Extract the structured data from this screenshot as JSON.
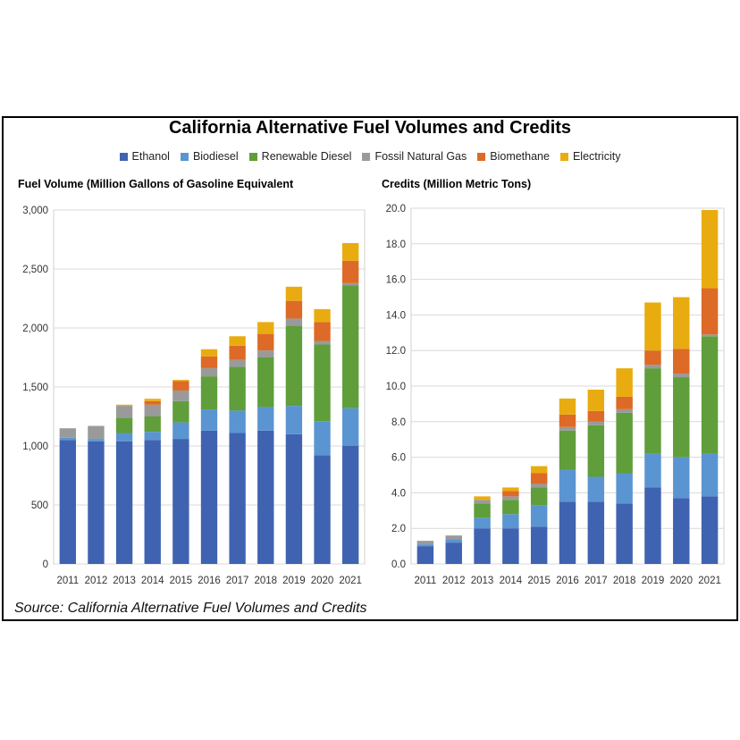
{
  "title": "California Alternative Fuel Volumes and Credits",
  "source": "Source: California Alternative Fuel Volumes and Credits",
  "legend": [
    {
      "name": "Ethanol",
      "color": "#3f63b0"
    },
    {
      "name": "Biodiesel",
      "color": "#5a95d2"
    },
    {
      "name": "Renewable Diesel",
      "color": "#5f9e3a"
    },
    {
      "name": "Fossil Natural Gas",
      "color": "#9a9a9a"
    },
    {
      "name": "Biomethane",
      "color": "#dd6a26"
    },
    {
      "name": "Electricity",
      "color": "#e9ac10"
    }
  ],
  "chart_data": [
    {
      "type": "bar",
      "stacked": true,
      "title": "Fuel Volume (Million Gallons of Gasoline Equivalent",
      "categories": [
        "2011",
        "2012",
        "2013",
        "2014",
        "2015",
        "2016",
        "2017",
        "2018",
        "2019",
        "2020",
        "2021"
      ],
      "yticks": [
        "0",
        "500",
        "1,000",
        "1,500",
        "2,000",
        "2,500",
        "3,000"
      ],
      "ylim": [
        0,
        3000
      ],
      "grid": true,
      "series": [
        {
          "name": "Ethanol",
          "values": [
            1050,
            1040,
            1040,
            1050,
            1060,
            1130,
            1110,
            1130,
            1100,
            920,
            1000
          ]
        },
        {
          "name": "Biodiesel",
          "values": [
            20,
            20,
            70,
            70,
            140,
            180,
            190,
            200,
            240,
            290,
            320
          ]
        },
        {
          "name": "Renewable Diesel",
          "values": [
            0,
            0,
            130,
            130,
            180,
            280,
            370,
            420,
            680,
            650,
            1040
          ]
        },
        {
          "name": "Fossil Natural Gas",
          "values": [
            80,
            110,
            100,
            100,
            90,
            70,
            60,
            60,
            60,
            30,
            20
          ]
        },
        {
          "name": "Biomethane",
          "values": [
            0,
            0,
            0,
            30,
            80,
            100,
            120,
            140,
            150,
            160,
            190
          ]
        },
        {
          "name": "Electricity",
          "values": [
            0,
            0,
            10,
            20,
            10,
            60,
            80,
            100,
            120,
            110,
            150
          ]
        }
      ]
    },
    {
      "type": "bar",
      "stacked": true,
      "title": "Credits (Million Metric Tons)",
      "categories": [
        "2011",
        "2012",
        "2013",
        "2014",
        "2015",
        "2016",
        "2017",
        "2018",
        "2019",
        "2020",
        "2021"
      ],
      "yticks": [
        "0.0",
        "2.0",
        "4.0",
        "6.0",
        "8.0",
        "10.0",
        "12.0",
        "14.0",
        "16.0",
        "18.0",
        "20.0"
      ],
      "ylim": [
        0,
        20
      ],
      "grid": true,
      "series": [
        {
          "name": "Ethanol",
          "values": [
            1.0,
            1.2,
            2.0,
            2.0,
            2.1,
            3.5,
            3.5,
            3.4,
            4.3,
            3.7,
            3.8
          ]
        },
        {
          "name": "Biodiesel",
          "values": [
            0.1,
            0.2,
            0.6,
            0.8,
            1.2,
            1.8,
            1.4,
            1.7,
            1.9,
            2.3,
            2.4
          ]
        },
        {
          "name": "Renewable Diesel",
          "values": [
            0.0,
            0.0,
            0.8,
            0.8,
            1.0,
            2.2,
            2.9,
            3.4,
            4.8,
            4.5,
            6.6
          ]
        },
        {
          "name": "Fossil Natural Gas",
          "values": [
            0.2,
            0.2,
            0.2,
            0.2,
            0.2,
            0.2,
            0.2,
            0.2,
            0.2,
            0.2,
            0.1
          ]
        },
        {
          "name": "Biomethane",
          "values": [
            0.0,
            0.0,
            0.0,
            0.3,
            0.6,
            0.7,
            0.6,
            0.7,
            0.8,
            1.4,
            2.6
          ]
        },
        {
          "name": "Electricity",
          "values": [
            0.0,
            0.0,
            0.2,
            0.2,
            0.4,
            0.9,
            1.2,
            1.6,
            2.7,
            2.9,
            4.4
          ]
        }
      ]
    }
  ]
}
